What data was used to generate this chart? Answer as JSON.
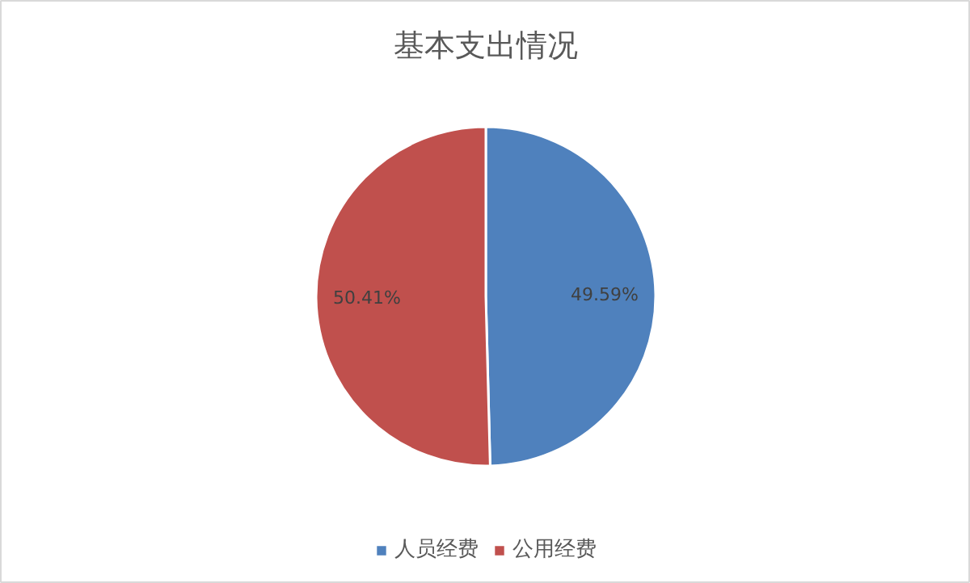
{
  "chart_data": {
    "type": "pie",
    "title": "基本支出情况",
    "categories": [
      "人员经费",
      "公用经费"
    ],
    "values": [
      49.59,
      50.41
    ],
    "colors": [
      "#4f81bd",
      "#c0504d"
    ],
    "value_labels": [
      "49.59%",
      "50.41%"
    ],
    "legend": "bottom"
  }
}
